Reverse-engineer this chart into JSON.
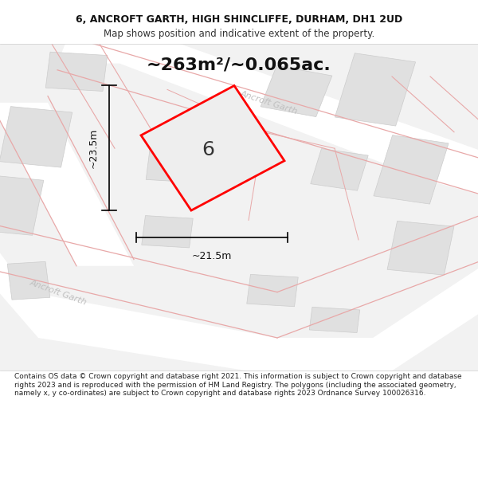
{
  "title_line1": "6, ANCROFT GARTH, HIGH SHINCLIFFE, DURHAM, DH1 2UD",
  "title_line2": "Map shows position and indicative extent of the property.",
  "area_text": "~263m²/~0.065ac.",
  "dimension_height": "~23.5m",
  "dimension_width": "~21.5m",
  "plot_label": "6",
  "footer_text": "Contains OS data © Crown copyright and database right 2021. This information is subject to Crown copyright and database rights 2023 and is reproduced with the permission of HM Land Registry. The polygons (including the associated geometry, namely x, y co-ordinates) are subject to Crown copyright and database rights 2023 Ordnance Survey 100026316.",
  "bg_color": "#f5f5f5",
  "map_bg": "#f0f0f0",
  "road_color_light": "#f5c0c0",
  "road_color_pink": "#e8a0a0",
  "building_fill": "#e0e0e0",
  "building_stroke": "#cccccc",
  "plot_stroke": "#ff0000",
  "plot_fill": "#e8e8e8",
  "road_label_color": "#b0b0b0",
  "dim_line_color": "#000000",
  "header_bg": "#ffffff",
  "footer_bg": "#ffffff"
}
